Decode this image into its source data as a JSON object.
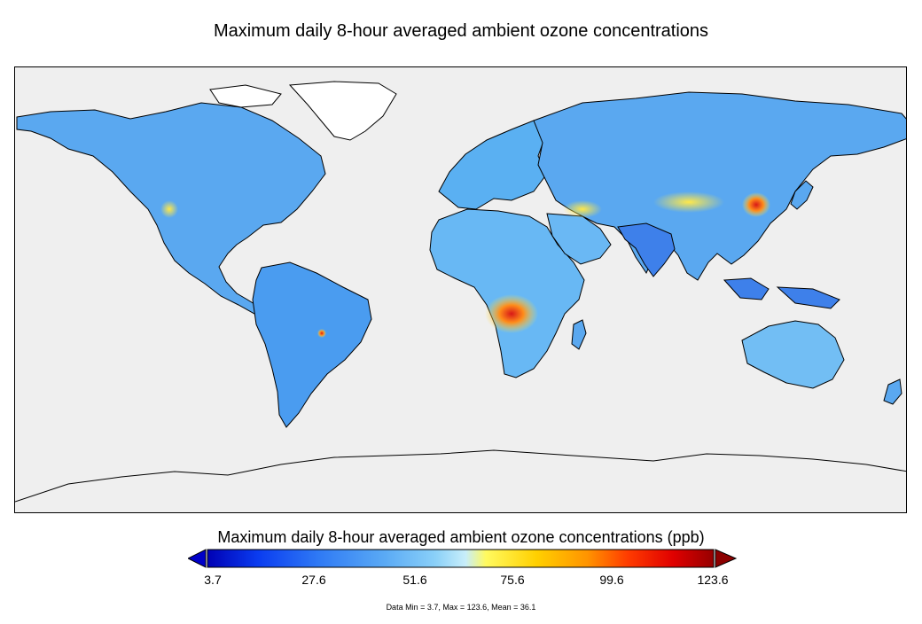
{
  "title": "Maximum daily 8-hour averaged ambient ozone concentrations",
  "colors": {
    "ocean": "#efefef",
    "coast": "#000000",
    "land_low": "#2e6fe8",
    "land_mid": "#66b4f2",
    "hot_yellow": "#ffe84a",
    "hot_orange": "#ff8c1a",
    "hot_red": "#d81818"
  },
  "colorbar": {
    "title": "Maximum daily 8-hour averaged ambient ozone concentrations (ppb)",
    "ticks": [
      "3.7",
      "27.6",
      "51.6",
      "75.6",
      "99.6",
      "123.6"
    ],
    "min": 3.7,
    "max": 123.6,
    "gradient": [
      "#0000b4",
      "#0a3cf0",
      "#2f7af5",
      "#5aaaf5",
      "#8ad0f8",
      "#c8eefa",
      "#fffa60",
      "#ffd000",
      "#ff9400",
      "#ff3c00",
      "#e00000",
      "#960000"
    ],
    "extend_left_color": "#0000c8",
    "extend_right_color": "#8c0000"
  },
  "stats_text": "Data Min = 3.7, Max = 123.6, Mean = 36.1"
}
